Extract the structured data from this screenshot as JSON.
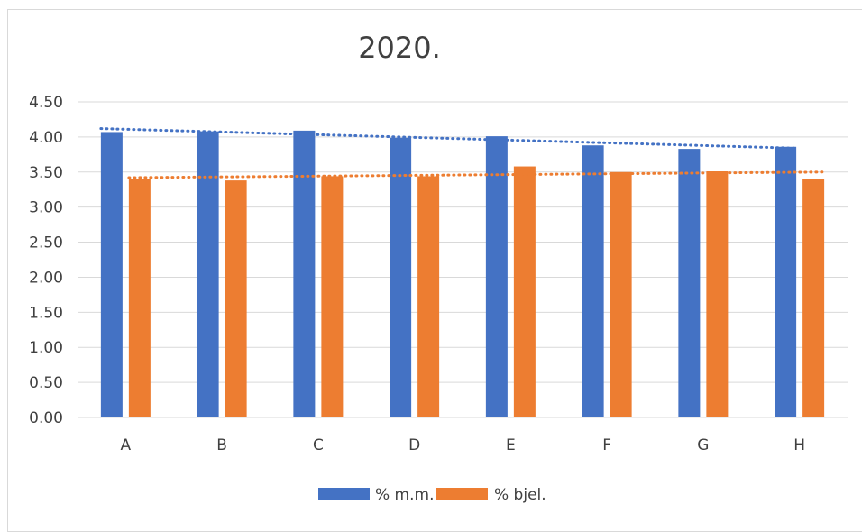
{
  "chart_data": {
    "type": "bar",
    "title": "2020.",
    "xlabel": "",
    "ylabel": "",
    "categories": [
      "A",
      "B",
      "C",
      "D",
      "E",
      "F",
      "G",
      "H"
    ],
    "y_ticks": [
      "0.00",
      "0.50",
      "1.00",
      "1.50",
      "2.00",
      "2.50",
      "3.00",
      "3.50",
      "4.00",
      "4.50"
    ],
    "ylim": [
      0,
      4.5
    ],
    "grid": true,
    "legend_position": "bottom",
    "series": [
      {
        "name": "% m.m.",
        "color": "#4472c4",
        "values": [
          4.07,
          4.08,
          4.09,
          3.99,
          4.01,
          3.88,
          3.83,
          3.86
        ],
        "trendline": {
          "type": "linear",
          "style": "dotted",
          "start": 4.12,
          "end": 3.84
        }
      },
      {
        "name": "% bjel.",
        "color": "#ed7d31",
        "values": [
          3.4,
          3.38,
          3.44,
          3.44,
          3.58,
          3.5,
          3.51,
          3.4
        ],
        "trendline": {
          "type": "linear",
          "style": "dotted",
          "start": 3.42,
          "end": 3.5
        }
      }
    ]
  }
}
